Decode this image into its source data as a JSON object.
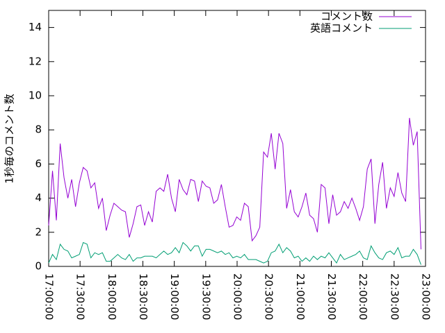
{
  "chart_data": {
    "type": "line",
    "ylabel": "1秒毎のコメント数",
    "x": [
      "17:00:00",
      "17:03:40",
      "17:07:20",
      "17:11:00",
      "17:14:40",
      "17:18:20",
      "17:22:00",
      "17:25:40",
      "17:29:20",
      "17:33:00",
      "17:36:40",
      "17:40:20",
      "17:44:00",
      "17:47:40",
      "17:51:20",
      "17:55:00",
      "17:58:40",
      "18:02:20",
      "18:06:00",
      "18:09:40",
      "18:13:20",
      "18:17:00",
      "18:20:40",
      "18:24:20",
      "18:28:00",
      "18:31:40",
      "18:35:20",
      "18:39:00",
      "18:42:40",
      "18:46:20",
      "18:50:00",
      "18:53:40",
      "18:57:20",
      "19:01:00",
      "19:04:40",
      "19:08:20",
      "19:12:00",
      "19:15:40",
      "19:19:20",
      "19:23:00",
      "19:26:40",
      "19:30:20",
      "19:34:00",
      "19:37:40",
      "19:41:20",
      "19:45:00",
      "19:48:40",
      "19:52:20",
      "19:56:00",
      "19:59:40",
      "20:03:20",
      "20:07:00",
      "20:10:40",
      "20:14:20",
      "20:18:00",
      "20:21:40",
      "20:25:20",
      "20:29:00",
      "20:32:40",
      "20:36:20",
      "20:40:00",
      "20:43:40",
      "20:47:20",
      "20:51:00",
      "20:54:40",
      "20:58:20",
      "21:02:00",
      "21:05:40",
      "21:09:20",
      "21:13:00",
      "21:16:40",
      "21:20:20",
      "21:24:00",
      "21:27:40",
      "21:31:20",
      "21:35:00",
      "21:38:40",
      "21:42:20",
      "21:46:00",
      "21:49:40",
      "21:53:20",
      "21:57:00",
      "22:00:40",
      "22:04:20",
      "22:08:00",
      "22:11:40",
      "22:15:20",
      "22:19:00",
      "22:22:40",
      "22:26:20",
      "22:30:00",
      "22:33:40",
      "22:37:20",
      "22:41:00",
      "22:44:40",
      "22:48:20",
      "22:52:00",
      "22:55:40"
    ],
    "series": [
      {
        "name": "コメント数",
        "color": "#9400d3",
        "values": [
          2.4,
          5.6,
          2.7,
          7.2,
          5.2,
          4.0,
          5.1,
          3.5,
          4.9,
          5.8,
          5.6,
          4.6,
          4.9,
          3.4,
          4.0,
          2.1,
          3.0,
          3.7,
          3.5,
          3.3,
          3.2,
          1.7,
          2.5,
          3.5,
          3.6,
          2.4,
          3.2,
          2.6,
          4.4,
          4.6,
          4.4,
          5.4,
          4.0,
          3.2,
          5.1,
          4.5,
          4.2,
          5.1,
          5.0,
          3.8,
          5.0,
          4.7,
          4.6,
          3.7,
          3.9,
          4.8,
          3.5,
          2.3,
          2.4,
          2.9,
          2.7,
          3.7,
          3.5,
          1.5,
          1.8,
          2.3,
          6.7,
          6.4,
          7.8,
          5.7,
          7.8,
          7.2,
          3.4,
          4.5,
          3.2,
          2.9,
          3.5,
          4.3,
          3.0,
          2.8,
          2.0,
          4.8,
          4.6,
          2.5,
          4.2,
          3.0,
          3.2,
          3.8,
          3.4,
          4.0,
          3.4,
          2.7,
          3.5,
          5.7,
          6.3,
          2.5,
          4.8,
          6.1,
          3.4,
          4.6,
          4.1,
          5.5,
          4.3,
          3.8,
          8.7,
          7.1,
          7.9,
          1.0
        ]
      },
      {
        "name": "英語コメント",
        "color": "#009e73",
        "values": [
          0.2,
          0.7,
          0.4,
          1.3,
          1.0,
          0.9,
          0.5,
          0.6,
          0.7,
          1.4,
          1.3,
          0.5,
          0.8,
          0.7,
          0.8,
          0.3,
          0.3,
          0.5,
          0.7,
          0.5,
          0.4,
          0.7,
          0.3,
          0.5,
          0.5,
          0.6,
          0.6,
          0.6,
          0.5,
          0.7,
          0.9,
          0.7,
          0.8,
          1.1,
          0.8,
          1.4,
          1.2,
          0.9,
          1.2,
          1.2,
          0.6,
          1.0,
          1.0,
          0.9,
          0.8,
          0.9,
          0.7,
          0.8,
          0.5,
          0.6,
          0.5,
          0.7,
          0.4,
          0.4,
          0.4,
          0.3,
          0.2,
          0.3,
          0.8,
          0.9,
          1.3,
          0.8,
          1.1,
          0.9,
          0.5,
          0.6,
          0.3,
          0.5,
          0.3,
          0.6,
          0.4,
          0.6,
          0.5,
          0.8,
          0.5,
          0.2,
          0.7,
          0.4,
          0.5,
          0.6,
          0.7,
          0.9,
          0.5,
          0.4,
          1.2,
          0.8,
          0.5,
          0.4,
          0.8,
          0.9,
          0.7,
          1.1,
          0.5,
          0.6,
          0.6,
          1.0,
          0.7,
          0.1
        ]
      }
    ],
    "xlim": [
      "17:00:00",
      "23:00:00"
    ],
    "xticks": [
      "17:00:00",
      "17:30:00",
      "18:00:00",
      "18:30:00",
      "19:00:00",
      "19:30:00",
      "20:00:00",
      "20:30:00",
      "21:00:00",
      "21:30:00",
      "22:00:00",
      "22:30:00",
      "23:00:00"
    ],
    "ylim": [
      0,
      15
    ],
    "yticks": [
      0,
      2,
      4,
      6,
      8,
      10,
      12,
      14
    ],
    "legend": "top-right"
  }
}
